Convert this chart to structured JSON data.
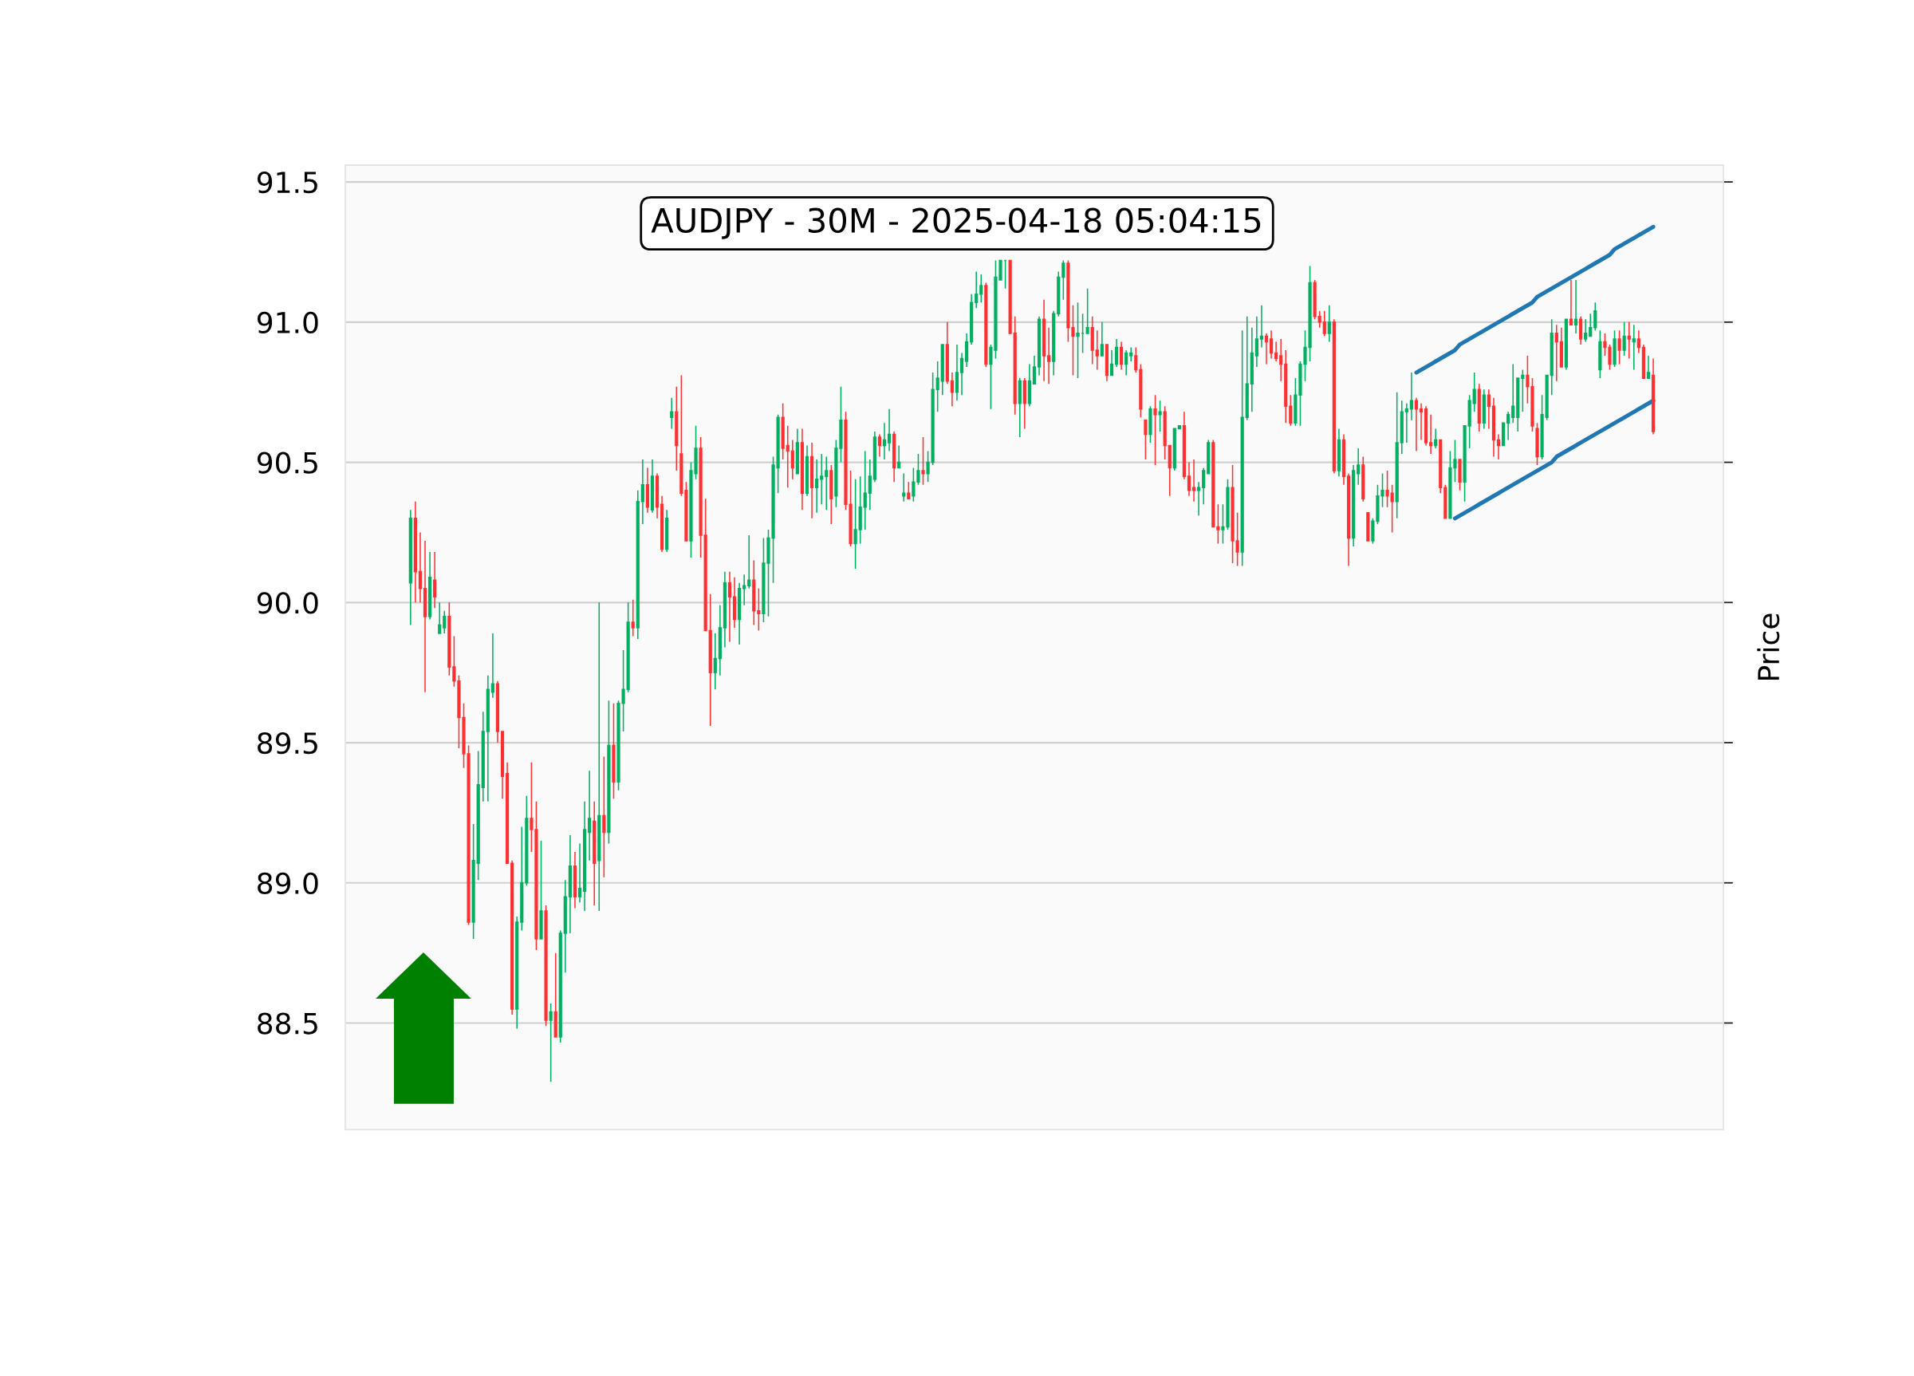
{
  "chart_data": {
    "type": "candlestick",
    "title": "AUDJPY - 30M - 2025-04-18 05:04:15",
    "ylabel": "Price",
    "categories": [
      null,
      null,
      null,
      null,
      null,
      null,
      null,
      null,
      null,
      null,
      null,
      null,
      null,
      null,
      null,
      null,
      null,
      null,
      null,
      null,
      null,
      null,
      null,
      null,
      null,
      null,
      null,
      null,
      null,
      null,
      null,
      null,
      null,
      null,
      null,
      null,
      null,
      null,
      null,
      null,
      null,
      null,
      null,
      null,
      null,
      null,
      null,
      null,
      null,
      null,
      null,
      null,
      null,
      null,
      null,
      null,
      null,
      null,
      null,
      null,
      null,
      null,
      null,
      null,
      null,
      null,
      null,
      null,
      null,
      null,
      null,
      null,
      null,
      null,
      null,
      null,
      null,
      null,
      null,
      null,
      null,
      null,
      null,
      null,
      null,
      null,
      null,
      null,
      null,
      null,
      null,
      null,
      null,
      null,
      null,
      null,
      null,
      null,
      null,
      null,
      null,
      null,
      null,
      null,
      null,
      null,
      null,
      null,
      null,
      null,
      null,
      null,
      null,
      null,
      null,
      null,
      null,
      null,
      null,
      null,
      null,
      null,
      null,
      null,
      null,
      null,
      null,
      null,
      null,
      null,
      null,
      null,
      null,
      null,
      null,
      null,
      null,
      null,
      null,
      null,
      null,
      null,
      null,
      null,
      null,
      null,
      null,
      null,
      null,
      null,
      null,
      null,
      null,
      null,
      null,
      null,
      null,
      null,
      null,
      null,
      null,
      null,
      null,
      null,
      null,
      null,
      null,
      null,
      null,
      null,
      null,
      null,
      null,
      null,
      null,
      null,
      null,
      null,
      null,
      null,
      null,
      null,
      null,
      null,
      null,
      null,
      null,
      null,
      null,
      null,
      null,
      null,
      null,
      null,
      null,
      null,
      null,
      null,
      null,
      null,
      null,
      null,
      null,
      null,
      null,
      null,
      null,
      null,
      null,
      null,
      null,
      null,
      null,
      null,
      null,
      null,
      null,
      null,
      null,
      null,
      null,
      null,
      null,
      null,
      null,
      null,
      null,
      null,
      null,
      null,
      null,
      null,
      null,
      null,
      null,
      null,
      null,
      null,
      null,
      null,
      null,
      null,
      null,
      null,
      null,
      null,
      null,
      null,
      null,
      null,
      null,
      null,
      null,
      null,
      null,
      null,
      null,
      null,
      null,
      null,
      null,
      null,
      null,
      null,
      null,
      null,
      null,
      null,
      null,
      null,
      null,
      null,
      null,
      null,
      null,
      null,
      null,
      null,
      null,
      null,
      null,
      null,
      null,
      null,
      null
    ],
    "ohlc": [
      null,
      null,
      null,
      null,
      null,
      null,
      null,
      null,
      null,
      null,
      null,
      null,
      null,
      [
        90.07,
        90.33,
        89.92,
        90.3
      ],
      [
        90.3,
        90.36,
        90.0,
        90.11
      ],
      [
        90.11,
        90.25,
        90.0,
        90.05
      ],
      [
        90.05,
        90.22,
        89.68,
        89.95
      ],
      [
        89.95,
        90.18,
        89.94,
        90.09
      ],
      [
        90.08,
        90.18,
        89.98,
        90.02
      ],
      [
        89.89,
        90.0,
        89.89,
        89.92
      ],
      [
        89.91,
        89.97,
        89.89,
        89.95
      ],
      [
        89.95,
        90.0,
        89.74,
        89.77
      ],
      [
        89.77,
        89.88,
        89.7,
        89.72
      ],
      [
        89.72,
        89.74,
        89.48,
        89.59
      ],
      [
        89.59,
        89.64,
        89.41,
        89.46
      ],
      [
        89.46,
        89.49,
        88.85,
        88.86
      ],
      [
        88.86,
        89.21,
        88.8,
        89.08
      ],
      [
        89.07,
        89.47,
        89.01,
        89.35
      ],
      [
        89.34,
        89.61,
        89.29,
        89.54
      ],
      [
        89.54,
        89.74,
        89.29,
        89.69
      ],
      [
        89.68,
        89.89,
        89.66,
        89.71
      ],
      [
        89.71,
        89.72,
        89.5,
        89.54
      ],
      [
        89.54,
        89.54,
        89.3,
        89.38
      ],
      [
        89.39,
        89.43,
        89.07,
        89.07
      ],
      [
        89.07,
        89.08,
        88.53,
        88.55
      ],
      [
        88.55,
        88.88,
        88.48,
        88.86
      ],
      [
        88.86,
        89.2,
        88.83,
        89.0
      ],
      [
        89.0,
        89.31,
        88.99,
        89.23
      ],
      [
        89.23,
        89.43,
        89.11,
        89.19
      ],
      [
        89.19,
        89.29,
        88.76,
        88.8
      ],
      [
        88.8,
        89.15,
        88.8,
        88.9
      ],
      [
        88.9,
        88.92,
        88.49,
        88.51
      ],
      [
        88.51,
        88.57,
        88.29,
        88.54
      ],
      [
        88.54,
        88.75,
        88.45,
        88.45
      ],
      [
        88.45,
        88.83,
        88.43,
        88.82
      ],
      [
        88.82,
        89.01,
        88.68,
        88.95
      ],
      [
        88.95,
        89.17,
        88.82,
        89.06
      ],
      [
        89.06,
        89.11,
        88.91,
        88.95
      ],
      [
        88.95,
        89.14,
        88.93,
        88.98
      ],
      [
        88.97,
        89.29,
        88.9,
        89.19
      ],
      [
        89.18,
        89.4,
        89.08,
        89.23
      ],
      [
        89.22,
        89.29,
        88.92,
        89.07
      ],
      [
        89.08,
        90.0,
        88.9,
        89.24
      ],
      [
        89.24,
        89.45,
        89.02,
        89.18
      ],
      [
        89.18,
        89.65,
        89.14,
        89.49
      ],
      [
        89.49,
        89.64,
        89.3,
        89.36
      ],
      [
        89.36,
        89.65,
        89.33,
        89.64
      ],
      [
        89.64,
        89.83,
        89.54,
        89.69
      ],
      [
        89.69,
        90.0,
        89.68,
        89.93
      ],
      [
        89.93,
        90.01,
        89.88,
        89.91
      ],
      [
        89.91,
        90.4,
        89.87,
        90.36
      ],
      [
        90.36,
        90.51,
        90.28,
        90.42
      ],
      [
        90.42,
        90.48,
        90.32,
        90.34
      ],
      [
        90.33,
        90.51,
        90.32,
        90.45
      ],
      [
        90.45,
        90.46,
        90.3,
        90.34
      ],
      [
        90.35,
        90.38,
        90.18,
        90.19
      ],
      [
        90.19,
        90.33,
        90.18,
        90.3
      ],
      [
        90.66,
        90.73,
        90.62,
        90.68
      ],
      [
        90.68,
        90.77,
        90.47,
        90.56
      ],
      [
        90.53,
        90.81,
        90.38,
        90.39
      ],
      [
        90.4,
        90.43,
        90.22,
        90.22
      ],
      [
        90.22,
        90.5,
        90.16,
        90.47
      ],
      [
        90.46,
        90.63,
        90.44,
        90.55
      ],
      [
        90.55,
        90.59,
        90.16,
        90.24
      ],
      [
        90.24,
        90.37,
        89.9,
        89.9
      ],
      [
        89.9,
        90.03,
        89.56,
        89.75
      ],
      [
        89.75,
        89.89,
        89.69,
        89.8
      ],
      [
        89.8,
        89.99,
        89.74,
        89.91
      ],
      [
        89.91,
        90.11,
        89.84,
        90.07
      ],
      [
        90.07,
        90.11,
        89.86,
        90.02
      ],
      [
        90.02,
        90.09,
        89.91,
        89.94
      ],
      [
        89.94,
        90.07,
        89.85,
        90.05
      ],
      [
        90.05,
        90.1,
        89.99,
        90.06
      ],
      [
        90.06,
        90.24,
        90.05,
        90.08
      ],
      [
        90.08,
        90.15,
        89.92,
        89.97
      ],
      [
        89.97,
        90.05,
        89.9,
        89.96
      ],
      [
        89.96,
        90.23,
        89.93,
        90.14
      ],
      [
        90.14,
        90.26,
        89.95,
        90.23
      ],
      [
        90.23,
        90.52,
        90.07,
        90.49
      ],
      [
        90.48,
        90.67,
        90.39,
        90.66
      ],
      [
        90.66,
        90.71,
        90.51,
        90.55
      ],
      [
        90.56,
        90.63,
        90.41,
        90.54
      ],
      [
        90.54,
        90.58,
        90.44,
        90.48
      ],
      [
        90.46,
        90.62,
        90.46,
        90.57
      ],
      [
        90.57,
        90.62,
        90.33,
        90.39
      ],
      [
        90.39,
        90.56,
        90.38,
        90.52
      ],
      [
        90.52,
        90.57,
        90.3,
        90.41
      ],
      [
        90.41,
        90.51,
        90.32,
        90.44
      ],
      [
        90.44,
        90.53,
        90.35,
        90.45
      ],
      [
        90.45,
        90.52,
        90.33,
        90.47
      ],
      [
        90.47,
        90.49,
        90.28,
        90.37
      ],
      [
        90.38,
        90.58,
        90.34,
        90.55
      ],
      [
        90.55,
        90.77,
        90.5,
        90.65
      ],
      [
        90.65,
        90.68,
        90.33,
        90.35
      ],
      [
        90.35,
        90.47,
        90.2,
        90.21
      ],
      [
        90.21,
        90.44,
        90.12,
        90.26
      ],
      [
        90.26,
        90.45,
        90.21,
        90.34
      ],
      [
        90.34,
        90.54,
        90.26,
        90.39
      ],
      [
        90.39,
        90.51,
        90.33,
        90.45
      ],
      [
        90.44,
        90.61,
        90.43,
        90.59
      ],
      [
        90.59,
        90.6,
        90.52,
        90.56
      ],
      [
        90.56,
        90.64,
        90.51,
        90.58
      ],
      [
        90.57,
        90.69,
        90.54,
        90.6
      ],
      [
        90.6,
        90.61,
        90.43,
        90.48
      ],
      [
        90.48,
        90.56,
        90.48,
        90.5
      ],
      [
        90.38,
        90.46,
        90.36,
        90.39
      ],
      [
        90.39,
        90.43,
        90.37,
        90.37
      ],
      [
        90.38,
        90.48,
        90.36,
        90.43
      ],
      [
        90.43,
        90.53,
        90.42,
        90.47
      ],
      [
        90.47,
        90.59,
        90.42,
        90.46
      ],
      [
        90.46,
        90.54,
        90.43,
        90.5
      ],
      [
        90.5,
        90.82,
        90.49,
        90.76
      ],
      [
        90.76,
        90.86,
        90.68,
        90.8
      ],
      [
        90.79,
        90.92,
        90.74,
        90.92
      ],
      [
        90.92,
        91.0,
        90.78,
        90.79
      ],
      [
        90.79,
        90.82,
        90.7,
        90.75
      ],
      [
        90.75,
        90.92,
        90.72,
        90.82
      ],
      [
        90.82,
        90.89,
        90.74,
        90.87
      ],
      [
        90.86,
        90.96,
        90.84,
        90.93
      ],
      [
        90.93,
        91.1,
        90.92,
        91.07
      ],
      [
        91.07,
        91.18,
        91.05,
        91.1
      ],
      [
        91.1,
        91.17,
        91.07,
        91.13
      ],
      [
        91.13,
        91.14,
        90.84,
        90.85
      ],
      [
        90.85,
        90.92,
        90.69,
        90.91
      ],
      [
        90.9,
        91.22,
        90.87,
        91.16
      ],
      [
        91.15,
        91.22,
        91.15,
        91.22
      ],
      [
        91.22,
        91.22,
        91.12,
        91.22
      ],
      [
        91.22,
        91.22,
        90.96,
        90.96
      ],
      [
        90.96,
        91.02,
        90.67,
        90.71
      ],
      [
        90.71,
        90.8,
        90.59,
        90.79
      ],
      [
        90.79,
        90.8,
        90.62,
        90.71
      ],
      [
        90.71,
        90.85,
        90.7,
        90.79
      ],
      [
        90.78,
        90.88,
        90.78,
        90.84
      ],
      [
        90.84,
        91.02,
        90.81,
        91.01
      ],
      [
        91.01,
        91.08,
        90.79,
        90.88
      ],
      [
        90.88,
        90.98,
        90.78,
        90.86
      ],
      [
        90.86,
        91.04,
        90.81,
        91.03
      ],
      [
        91.03,
        91.18,
        91.02,
        91.16
      ],
      [
        91.16,
        91.22,
        91.08,
        91.21
      ],
      [
        91.21,
        91.22,
        90.93,
        90.98
      ],
      [
        90.98,
        91.06,
        90.81,
        90.95
      ],
      [
        90.95,
        91.07,
        90.8,
        90.96
      ],
      [
        90.96,
        91.03,
        90.89,
        90.96
      ],
      [
        90.96,
        91.12,
        90.96,
        90.98
      ],
      [
        90.98,
        91.02,
        90.85,
        90.9
      ],
      [
        90.9,
        90.97,
        90.83,
        90.88
      ],
      [
        90.88,
        91.0,
        90.88,
        90.92
      ],
      [
        90.92,
        90.92,
        90.79,
        90.81
      ],
      [
        90.81,
        90.9,
        90.81,
        90.85
      ],
      [
        90.85,
        90.94,
        90.84,
        90.91
      ],
      [
        90.91,
        90.93,
        90.83,
        90.85
      ],
      [
        90.85,
        90.9,
        90.81,
        90.89
      ],
      [
        90.88,
        90.91,
        90.86,
        90.89
      ],
      [
        90.88,
        90.91,
        90.82,
        90.83
      ],
      [
        90.83,
        90.85,
        90.66,
        90.69
      ],
      [
        90.65,
        90.65,
        90.51,
        90.6
      ],
      [
        90.6,
        90.7,
        90.57,
        90.69
      ],
      [
        90.69,
        90.74,
        90.49,
        90.67
      ],
      [
        90.67,
        90.72,
        90.61,
        90.68
      ],
      [
        90.68,
        90.7,
        90.51,
        90.56
      ],
      [
        90.56,
        90.56,
        90.38,
        90.48
      ],
      [
        90.48,
        90.62,
        90.47,
        90.62
      ],
      [
        90.62,
        90.63,
        90.62,
        90.63
      ],
      [
        90.63,
        90.68,
        90.44,
        90.45
      ],
      [
        90.45,
        90.5,
        90.38,
        90.4
      ],
      [
        90.41,
        90.51,
        90.36,
        90.4
      ],
      [
        90.4,
        90.43,
        90.31,
        90.41
      ],
      [
        90.41,
        90.48,
        90.35,
        90.47
      ],
      [
        90.46,
        90.58,
        90.46,
        90.57
      ],
      [
        90.57,
        90.58,
        90.27,
        90.27
      ],
      [
        90.27,
        90.35,
        90.21,
        90.26
      ],
      [
        90.26,
        90.35,
        90.21,
        90.27
      ],
      [
        90.27,
        90.44,
        90.26,
        90.41
      ],
      [
        90.41,
        90.49,
        90.14,
        90.22
      ],
      [
        90.22,
        90.32,
        90.13,
        90.18
      ],
      [
        90.18,
        90.97,
        90.13,
        90.66
      ],
      [
        90.66,
        91.02,
        90.65,
        90.78
      ],
      [
        90.78,
        90.98,
        90.68,
        90.89
      ],
      [
        90.88,
        91.02,
        90.84,
        90.94
      ],
      [
        90.94,
        91.06,
        90.91,
        90.95
      ],
      [
        90.95,
        90.96,
        90.85,
        90.93
      ],
      [
        90.94,
        90.97,
        90.87,
        90.89
      ],
      [
        90.89,
        90.93,
        90.86,
        90.87
      ],
      [
        90.88,
        90.94,
        90.79,
        90.85
      ],
      [
        90.85,
        90.9,
        90.64,
        90.7
      ],
      [
        90.7,
        90.74,
        90.63,
        90.64
      ],
      [
        90.64,
        90.8,
        90.63,
        90.74
      ],
      [
        90.74,
        90.86,
        90.63,
        90.85
      ],
      [
        90.85,
        90.97,
        90.79,
        90.91
      ],
      [
        90.91,
        91.2,
        90.86,
        91.14
      ],
      [
        91.14,
        91.15,
        91.01,
        91.02
      ],
      [
        91.02,
        91.04,
        90.98,
        91.0
      ],
      [
        91.0,
        91.04,
        90.95,
        90.96
      ],
      [
        90.96,
        91.06,
        90.93,
        91.0
      ],
      [
        91.0,
        91.01,
        90.46,
        90.47
      ],
      [
        90.47,
        90.62,
        90.45,
        90.58
      ],
      [
        90.58,
        90.6,
        90.42,
        90.45
      ],
      [
        90.45,
        90.46,
        90.13,
        90.23
      ],
      [
        90.23,
        90.49,
        90.2,
        90.47
      ],
      [
        90.46,
        90.55,
        90.42,
        90.49
      ],
      [
        90.49,
        90.52,
        90.36,
        90.37
      ],
      [
        90.32,
        90.32,
        90.22,
        90.22
      ],
      [
        90.22,
        90.3,
        90.21,
        90.29
      ],
      [
        90.29,
        90.42,
        90.28,
        90.38
      ],
      [
        90.38,
        90.46,
        90.34,
        90.4
      ],
      [
        90.4,
        90.47,
        90.34,
        90.38
      ],
      [
        90.39,
        90.42,
        90.25,
        90.36
      ],
      [
        90.36,
        90.75,
        90.3,
        90.57
      ],
      [
        90.57,
        90.72,
        90.53,
        90.68
      ],
      [
        90.68,
        90.71,
        90.57,
        90.69
      ],
      [
        90.69,
        90.82,
        90.65,
        90.72
      ],
      [
        90.72,
        90.73,
        90.54,
        90.69
      ],
      [
        90.69,
        90.71,
        90.58,
        90.68
      ],
      [
        90.69,
        90.7,
        90.56,
        90.57
      ],
      [
        90.57,
        90.67,
        90.53,
        90.56
      ],
      [
        90.56,
        90.62,
        90.55,
        90.58
      ],
      [
        90.58,
        90.58,
        90.39,
        90.41
      ],
      [
        90.41,
        90.42,
        90.3,
        90.3
      ],
      [
        90.3,
        90.54,
        90.3,
        90.48
      ],
      [
        90.48,
        90.58,
        90.43,
        90.51
      ],
      [
        90.51,
        90.51,
        90.4,
        90.43
      ],
      [
        90.43,
        90.63,
        90.36,
        90.63
      ],
      [
        90.63,
        90.74,
        90.55,
        90.72
      ],
      [
        90.71,
        90.82,
        90.68,
        90.76
      ],
      [
        90.76,
        90.78,
        90.61,
        90.64
      ],
      [
        90.64,
        90.76,
        90.62,
        90.74
      ],
      [
        90.74,
        90.76,
        90.62,
        90.7
      ],
      [
        90.7,
        90.73,
        90.52,
        90.58
      ],
      [
        90.58,
        90.6,
        90.51,
        90.56
      ],
      [
        90.56,
        90.64,
        90.56,
        90.64
      ],
      [
        90.64,
        90.68,
        90.58,
        90.67
      ],
      [
        90.66,
        90.85,
        90.64,
        90.7
      ],
      [
        90.66,
        90.8,
        90.61,
        90.8
      ],
      [
        90.8,
        90.83,
        90.68,
        90.81
      ],
      [
        90.81,
        90.88,
        90.71,
        90.77
      ],
      [
        90.77,
        90.8,
        90.61,
        90.63
      ],
      [
        90.62,
        90.64,
        90.49,
        90.52
      ],
      [
        90.52,
        90.74,
        90.51,
        90.67
      ],
      [
        90.66,
        90.81,
        90.65,
        90.81
      ],
      [
        90.81,
        91.01,
        90.74,
        90.96
      ],
      [
        90.96,
        90.99,
        90.79,
        90.93
      ],
      [
        90.93,
        90.98,
        90.84,
        90.84
      ],
      [
        90.84,
        91.01,
        90.83,
        91.01
      ],
      [
        91.01,
        91.15,
        90.99,
        90.99
      ],
      [
        90.99,
        91.15,
        90.96,
        91.01
      ],
      [
        91.01,
        91.02,
        90.92,
        90.94
      ],
      [
        90.94,
        91.01,
        90.93,
        90.96
      ],
      [
        90.95,
        91.03,
        90.95,
        90.98
      ],
      [
        90.98,
        91.07,
        90.97,
        91.04
      ],
      [
        90.83,
        90.97,
        90.8,
        90.93
      ],
      [
        90.93,
        90.96,
        90.88,
        90.91
      ],
      [
        90.91,
        90.92,
        90.83,
        90.85
      ],
      [
        90.85,
        90.97,
        90.84,
        90.94
      ],
      [
        90.94,
        90.97,
        90.85,
        90.9
      ],
      [
        90.9,
        91.0,
        90.88,
        90.95
      ],
      [
        90.95,
        91.0,
        90.87,
        90.94
      ],
      [
        90.93,
        90.99,
        90.83,
        90.94
      ],
      [
        90.94,
        90.97,
        90.89,
        90.91
      ],
      [
        90.91,
        90.92,
        90.8,
        90.8
      ],
      [
        90.8,
        90.88,
        90.8,
        90.82
      ],
      [
        90.81,
        90.87,
        90.6,
        90.61
      ],
      null,
      null,
      null,
      null,
      null,
      null,
      null,
      null,
      null,
      null,
      null,
      null,
      null,
      null
    ],
    "series": [
      {
        "type": "line",
        "color": "#1f77b4",
        "values": [
          null,
          null,
          null,
          null,
          null,
          null,
          null,
          null,
          null,
          null,
          null,
          null,
          null,
          null,
          null,
          null,
          null,
          null,
          null,
          null,
          null,
          null,
          null,
          null,
          null,
          null,
          null,
          null,
          null,
          null,
          null,
          null,
          null,
          null,
          null,
          null,
          null,
          null,
          null,
          null,
          null,
          null,
          null,
          null,
          null,
          null,
          null,
          null,
          null,
          null,
          null,
          null,
          null,
          null,
          null,
          null,
          null,
          null,
          null,
          null,
          null,
          null,
          null,
          null,
          null,
          null,
          null,
          null,
          null,
          null,
          null,
          null,
          null,
          null,
          null,
          null,
          null,
          null,
          null,
          null,
          null,
          null,
          null,
          null,
          null,
          null,
          null,
          null,
          null,
          null,
          null,
          null,
          null,
          null,
          null,
          null,
          null,
          null,
          null,
          null,
          null,
          null,
          null,
          null,
          null,
          null,
          null,
          null,
          null,
          null,
          null,
          null,
          null,
          null,
          null,
          null,
          null,
          null,
          null,
          null,
          null,
          null,
          null,
          null,
          null,
          null,
          null,
          null,
          null,
          null,
          null,
          null,
          null,
          null,
          null,
          null,
          null,
          null,
          null,
          null,
          null,
          null,
          null,
          null,
          null,
          null,
          null,
          null,
          null,
          null,
          null,
          null,
          null,
          null,
          null,
          null,
          null,
          null,
          null,
          null,
          null,
          null,
          null,
          null,
          null,
          null,
          null,
          null,
          null,
          null,
          null,
          null,
          null,
          null,
          null,
          null,
          null,
          null,
          null,
          null,
          null,
          null,
          null,
          null,
          null,
          null,
          null,
          null,
          null,
          null,
          null,
          null,
          null,
          null,
          null,
          null,
          null,
          null,
          null,
          null,
          null,
          null,
          null,
          null,
          null,
          null,
          null,
          null,
          null,
          null,
          null,
          null,
          null,
          null,
          null,
          null,
          null,
          null,
          null,
          null,
          null,
          90.82,
          90.83,
          90.84,
          90.85,
          90.86,
          90.87,
          90.88,
          90.89,
          90.9,
          90.92,
          90.93,
          90.94,
          90.95,
          90.96,
          90.97,
          90.98,
          90.99,
          91.0,
          91.01,
          91.02,
          91.03,
          91.04,
          91.05,
          91.06,
          91.07,
          91.09,
          91.1,
          91.11,
          91.12,
          91.13,
          91.14,
          91.15,
          91.16,
          91.17,
          91.18,
          91.19,
          91.2,
          91.21,
          91.22,
          91.23,
          91.24,
          91.26,
          91.27,
          91.28,
          91.29,
          91.3,
          91.31,
          91.32,
          91.33,
          91.34,
          null,
          null,
          null,
          null,
          null,
          null,
          null,
          null,
          null,
          null,
          null,
          null,
          null,
          null
        ]
      },
      {
        "type": "line",
        "color": "#1f77b4",
        "values": [
          null,
          null,
          null,
          null,
          null,
          null,
          null,
          null,
          null,
          null,
          null,
          null,
          null,
          null,
          null,
          null,
          null,
          null,
          null,
          null,
          null,
          null,
          null,
          null,
          null,
          null,
          null,
          null,
          null,
          null,
          null,
          null,
          null,
          null,
          null,
          null,
          null,
          null,
          null,
          null,
          null,
          null,
          null,
          null,
          null,
          null,
          null,
          null,
          null,
          null,
          null,
          null,
          null,
          null,
          null,
          null,
          null,
          null,
          null,
          null,
          null,
          null,
          null,
          null,
          null,
          null,
          null,
          null,
          null,
          null,
          null,
          null,
          null,
          null,
          null,
          null,
          null,
          null,
          null,
          null,
          null,
          null,
          null,
          null,
          null,
          null,
          null,
          null,
          null,
          null,
          null,
          null,
          null,
          null,
          null,
          null,
          null,
          null,
          null,
          null,
          null,
          null,
          null,
          null,
          null,
          null,
          null,
          null,
          null,
          null,
          null,
          null,
          null,
          null,
          null,
          null,
          null,
          null,
          null,
          null,
          null,
          null,
          null,
          null,
          null,
          null,
          null,
          null,
          null,
          null,
          null,
          null,
          null,
          null,
          null,
          null,
          null,
          null,
          null,
          null,
          null,
          null,
          null,
          null,
          null,
          null,
          null,
          null,
          null,
          null,
          null,
          null,
          null,
          null,
          null,
          null,
          null,
          null,
          null,
          null,
          null,
          null,
          null,
          null,
          null,
          null,
          null,
          null,
          null,
          null,
          null,
          null,
          null,
          null,
          null,
          null,
          null,
          null,
          null,
          null,
          null,
          null,
          null,
          null,
          null,
          null,
          null,
          null,
          null,
          null,
          null,
          null,
          null,
          null,
          null,
          null,
          null,
          null,
          null,
          null,
          null,
          null,
          null,
          null,
          null,
          null,
          null,
          null,
          null,
          null,
          null,
          null,
          null,
          null,
          null,
          null,
          null,
          null,
          null,
          null,
          null,
          null,
          null,
          null,
          null,
          null,
          null,
          null,
          null,
          90.3,
          90.31,
          90.32,
          90.33,
          90.34,
          90.35,
          90.36,
          90.37,
          90.38,
          90.39,
          90.4,
          90.41,
          90.42,
          90.43,
          90.44,
          90.45,
          90.46,
          90.47,
          90.48,
          90.49,
          90.5,
          90.52,
          90.53,
          90.54,
          90.55,
          90.56,
          90.57,
          90.58,
          90.59,
          90.6,
          90.61,
          90.62,
          90.63,
          90.64,
          90.65,
          90.66,
          90.67,
          90.68,
          90.69,
          90.7,
          90.71,
          90.72,
          null,
          null,
          null,
          null,
          null,
          null,
          null,
          null,
          null,
          null,
          null,
          null,
          null,
          null
        ]
      }
    ],
    "ylim": [
      88.12,
      91.56
    ],
    "yticks": [
      88.5,
      {
        "value": 89,
        "label": "89.0"
      },
      89.5,
      {
        "value": 90,
        "label": "90.0"
      },
      90.5,
      {
        "value": 91,
        "label": "91.0"
      },
      91.5
    ],
    "grid": "y",
    "tick_labels": "y"
  }
}
